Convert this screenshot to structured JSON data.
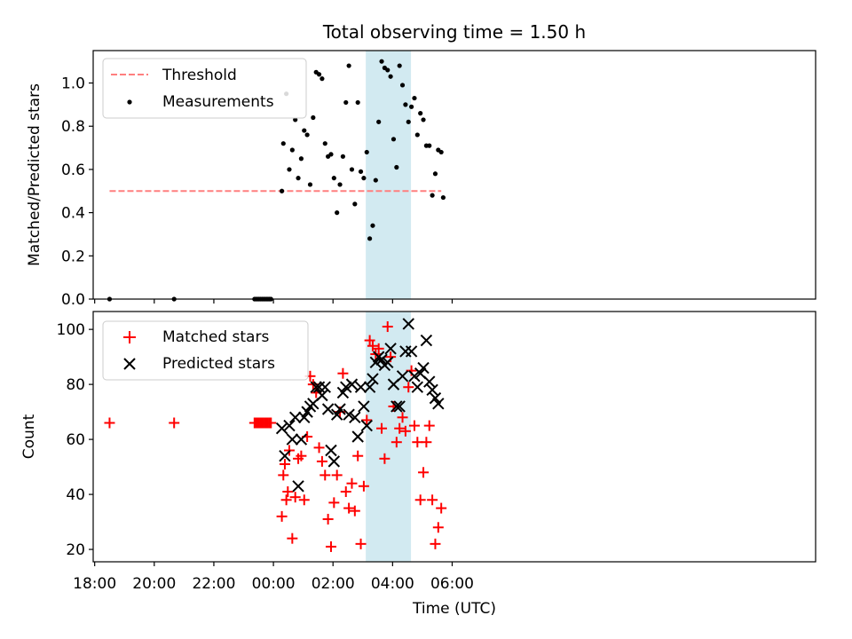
{
  "figure": {
    "title": "Total observing time = 1.50 h",
    "xlabel": "Time (UTC)",
    "x_ticks": [
      "18:00",
      "20:00",
      "22:00",
      "00:00",
      "02:00",
      "04:00",
      "06:00"
    ]
  },
  "chart_data": [
    {
      "type": "scatter",
      "panel": "top",
      "ylabel": "Matched/Predicted stars",
      "ylim": [
        0,
        1.15
      ],
      "y_ticks": [
        "0.0",
        "0.2",
        "0.4",
        "0.6",
        "0.8",
        "1.0"
      ],
      "x_unit": "hours after 18:00 UTC",
      "xlim": [
        -0.05,
        24.2
      ],
      "legend": {
        "placement": "top-left",
        "entries": [
          "Threshold",
          "Measurements"
        ]
      },
      "shaded_span": {
        "x_start": "03:06",
        "x_end": "04:37",
        "color": "#add8e6"
      },
      "series": [
        {
          "name": "Threshold",
          "style": "dashed-line",
          "color": "#ff7f7f",
          "x": [
            "18:30",
            "05:38"
          ],
          "y": [
            0.5,
            0.5
          ]
        },
        {
          "name": "Measurements",
          "style": "dots",
          "color": "#000000",
          "x": [
            "18:30",
            "20:40",
            "23:22",
            "23:25",
            "23:28",
            "23:31",
            "23:34",
            "23:37",
            "23:40",
            "23:43",
            "23:46",
            "23:49",
            "23:52",
            "23:55",
            "00:17",
            "00:20",
            "00:26",
            "00:32",
            "00:38",
            "00:44",
            "00:50",
            "00:56",
            "01:02",
            "01:08",
            "01:14",
            "01:20",
            "01:26",
            "01:32",
            "01:38",
            "01:44",
            "01:50",
            "01:56",
            "02:02",
            "02:08",
            "02:14",
            "02:20",
            "02:26",
            "02:32",
            "02:38",
            "02:44",
            "02:50",
            "02:56",
            "03:02",
            "03:08",
            "03:14",
            "03:20",
            "03:26",
            "03:32",
            "03:38",
            "03:44",
            "03:50",
            "03:56",
            "04:02",
            "04:08",
            "04:14",
            "04:20",
            "04:26",
            "04:32",
            "04:38",
            "04:44",
            "04:50",
            "04:56",
            "05:02",
            "05:08",
            "05:14",
            "05:20",
            "05:26",
            "05:32",
            "05:38",
            "05:42"
          ],
          "y": [
            0,
            0,
            0,
            0,
            0,
            0,
            0,
            0,
            0,
            0,
            0,
            0,
            0,
            0,
            0.5,
            0.72,
            0.95,
            0.6,
            0.69,
            0.83,
            0.56,
            0.65,
            0.78,
            0.76,
            0.53,
            0.84,
            1.05,
            1.04,
            1.02,
            0.72,
            0.66,
            0.67,
            0.56,
            0.4,
            0.53,
            0.66,
            0.91,
            1.08,
            0.6,
            0.44,
            0.91,
            0.59,
            0.56,
            0.68,
            0.28,
            0.34,
            0.55,
            0.82,
            1.1,
            1.07,
            1.06,
            1.03,
            0.74,
            0.61,
            1.08,
            0.99,
            0.9,
            0.82,
            0.89,
            0.93,
            0.76,
            0.86,
            0.83,
            0.71,
            0.71,
            0.48,
            0.58,
            0.69,
            0.68,
            0.47
          ]
        }
      ]
    },
    {
      "type": "scatter",
      "panel": "bottom",
      "ylabel": "Count",
      "ylim": [
        15.5,
        106.5
      ],
      "y_ticks": [
        "20",
        "40",
        "60",
        "80",
        "100"
      ],
      "x_unit": "hours after 18:00 UTC",
      "xlim": [
        -0.05,
        24.2
      ],
      "legend": {
        "placement": "top-left",
        "entries": [
          "Matched stars",
          "Predicted stars"
        ]
      },
      "shaded_span": {
        "x_start": "03:06",
        "x_end": "04:37",
        "color": "#add8e6"
      },
      "series": [
        {
          "name": "Matched stars",
          "marker": "+",
          "color": "#ff0000",
          "x": [
            "18:30",
            "20:40",
            "23:22",
            "23:25",
            "23:28",
            "23:31",
            "23:34",
            "23:37",
            "23:40",
            "23:43",
            "23:46",
            "23:49",
            "23:52",
            "23:55",
            "00:17",
            "00:20",
            "00:23",
            "00:26",
            "00:29",
            "00:32",
            "00:38",
            "00:44",
            "00:50",
            "00:56",
            "01:02",
            "01:08",
            "01:14",
            "01:20",
            "01:26",
            "01:32",
            "01:38",
            "01:44",
            "01:50",
            "01:56",
            "02:02",
            "02:08",
            "02:14",
            "02:20",
            "02:26",
            "02:32",
            "02:38",
            "02:44",
            "02:50",
            "02:56",
            "03:02",
            "03:08",
            "03:14",
            "03:20",
            "03:26",
            "03:32",
            "03:38",
            "03:44",
            "03:50",
            "03:56",
            "04:02",
            "04:08",
            "04:14",
            "04:20",
            "04:26",
            "04:32",
            "04:38",
            "04:44",
            "04:50",
            "04:56",
            "05:02",
            "05:08",
            "05:14",
            "05:20",
            "05:26",
            "05:32",
            "05:38"
          ],
          "y": [
            66,
            66,
            66,
            66,
            66,
            66,
            66,
            66,
            66,
            66,
            66,
            66,
            66,
            66,
            32,
            47,
            51,
            38,
            41,
            56,
            24,
            39,
            53,
            54,
            38,
            61,
            83,
            80,
            77,
            57,
            52,
            47,
            31,
            21,
            37,
            47,
            70,
            84,
            41,
            35,
            44,
            34,
            54,
            22,
            43,
            67,
            96,
            94,
            91,
            93,
            64,
            53,
            101,
            90,
            72,
            59,
            64,
            68,
            63,
            79,
            85,
            65,
            59,
            38,
            48,
            59,
            65,
            38,
            22,
            28,
            35
          ]
        },
        {
          "name": "Predicted stars",
          "marker": "x",
          "color": "#000000",
          "x": [
            "00:17",
            "00:23",
            "00:32",
            "00:38",
            "00:44",
            "00:50",
            "00:56",
            "01:02",
            "01:08",
            "01:14",
            "01:20",
            "01:26",
            "01:32",
            "01:38",
            "01:44",
            "01:50",
            "01:56",
            "02:02",
            "02:08",
            "02:14",
            "02:20",
            "02:26",
            "02:32",
            "02:38",
            "02:44",
            "02:50",
            "02:56",
            "03:02",
            "03:08",
            "03:14",
            "03:20",
            "03:26",
            "03:32",
            "03:38",
            "03:44",
            "03:50",
            "03:56",
            "04:02",
            "04:08",
            "04:14",
            "04:20",
            "04:26",
            "04:32",
            "04:38",
            "04:44",
            "04:50",
            "04:56",
            "05:02",
            "05:08",
            "05:14",
            "05:20",
            "05:26",
            "05:32"
          ],
          "y": [
            64,
            54,
            65,
            60,
            68,
            43,
            60,
            68,
            70,
            72,
            73,
            79,
            79,
            76,
            79,
            71,
            56,
            52,
            69,
            71,
            77,
            79,
            69,
            80,
            68,
            61,
            79,
            72,
            65,
            79,
            82,
            88,
            90,
            89,
            87,
            88,
            93,
            80,
            72,
            72,
            83,
            92,
            102,
            92,
            83,
            79,
            84,
            86,
            96,
            81,
            78,
            75,
            73
          ]
        }
      ]
    }
  ]
}
